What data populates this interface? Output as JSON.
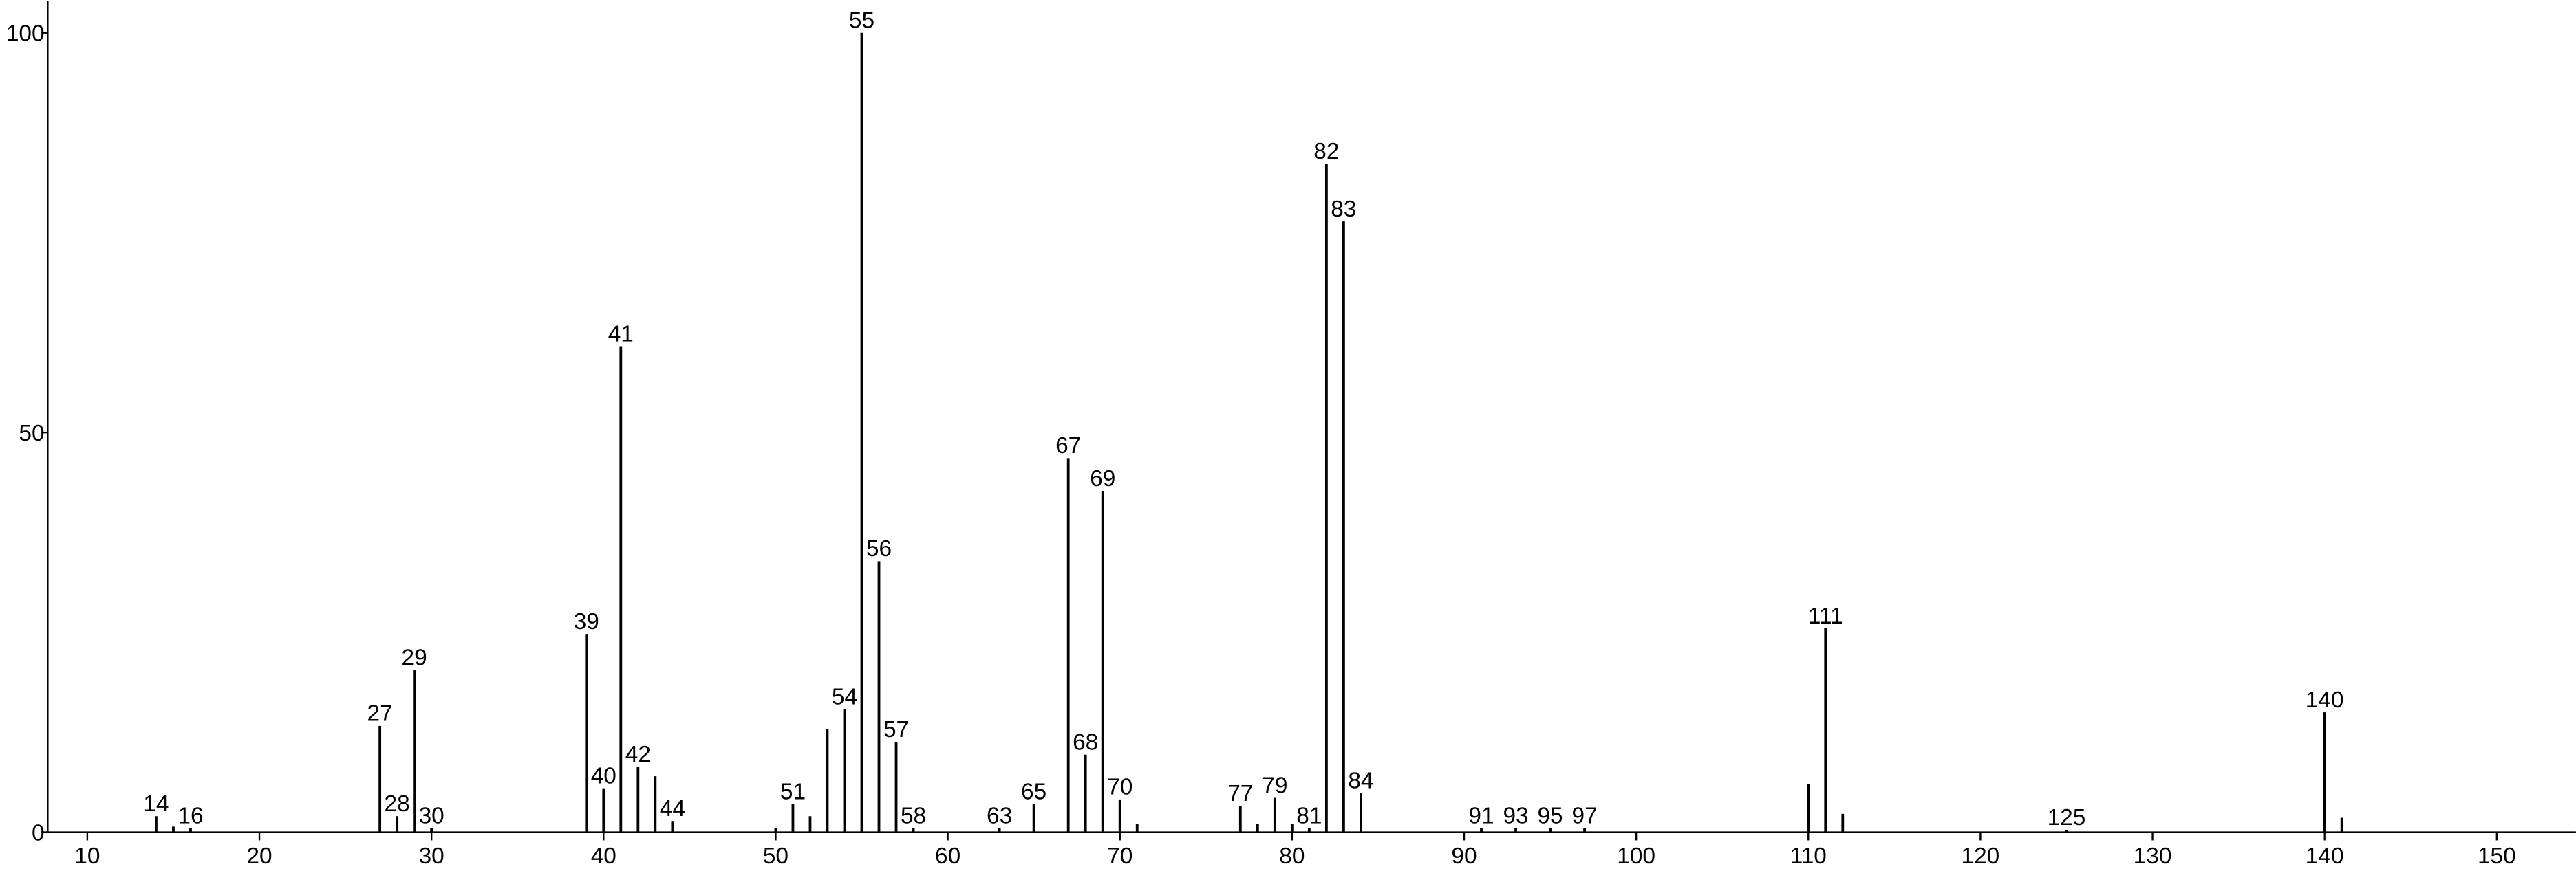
{
  "chart_data": {
    "type": "stem",
    "x": [
      14,
      15,
      16,
      27,
      28,
      29,
      30,
      39,
      40,
      41,
      42,
      43,
      44,
      50,
      51,
      52,
      53,
      54,
      55,
      56,
      57,
      58,
      63,
      65,
      67,
      68,
      69,
      70,
      71,
      77,
      78,
      79,
      80,
      81,
      82,
      83,
      84,
      91,
      93,
      95,
      97,
      110,
      111,
      112,
      125,
      140,
      141
    ],
    "values": [
      2,
      0.7,
      0.5,
      13.3,
      2,
      20.3,
      0.5,
      24.8,
      5.5,
      60.8,
      8.2,
      7,
      1.4,
      0.5,
      3.5,
      2,
      12.9,
      15.4,
      100,
      33.9,
      11.3,
      0.5,
      0.5,
      3.5,
      46.8,
      9.7,
      42.7,
      4.1,
      1,
      3.3,
      1,
      4.3,
      1,
      0.5,
      83.6,
      76.4,
      4.9,
      0.5,
      0.5,
      0.5,
      0.5,
      6,
      25.5,
      2.3,
      0.3,
      15,
      1.8
    ],
    "show_label": [
      true,
      false,
      true,
      true,
      true,
      true,
      true,
      true,
      true,
      true,
      true,
      false,
      true,
      false,
      true,
      false,
      false,
      true,
      true,
      true,
      true,
      true,
      true,
      true,
      true,
      true,
      true,
      true,
      false,
      true,
      false,
      true,
      false,
      true,
      true,
      true,
      true,
      true,
      true,
      true,
      true,
      false,
      true,
      false,
      true,
      true,
      false
    ],
    "color": "#000000",
    "xlim": [
      7.7,
      154.6
    ],
    "xticks": [
      10,
      20,
      30,
      40,
      50,
      60,
      70,
      80,
      90,
      100,
      110,
      120,
      130,
      140,
      150
    ],
    "ylim": [
      0,
      104
    ],
    "yticks": [
      0,
      50,
      100
    ]
  }
}
